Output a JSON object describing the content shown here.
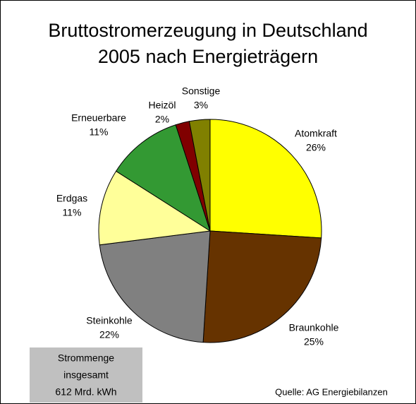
{
  "chart_data": {
    "type": "pie",
    "title": [
      "Bruttostromerzeugung in Deutschland",
      "2005 nach Energieträgern"
    ],
    "categories": [
      "Atomkraft",
      "Braunkohle",
      "Steinkohle",
      "Erdgas",
      "Erneuerbare",
      "Heizöl",
      "Sonstige"
    ],
    "values": [
      26,
      25,
      22,
      11,
      11,
      2,
      3
    ],
    "value_labels": [
      "26%",
      "25%",
      "22%",
      "11%",
      "11%",
      "2%",
      "3%"
    ],
    "colors": [
      "#ffff00",
      "#663300",
      "#808080",
      "#ffff99",
      "#339933",
      "#800000",
      "#808000"
    ],
    "annotation": [
      "Strommenge",
      "insgesamt",
      "612 Mrd. kWh"
    ],
    "source": "Quelle: AG Energiebilanzen"
  }
}
